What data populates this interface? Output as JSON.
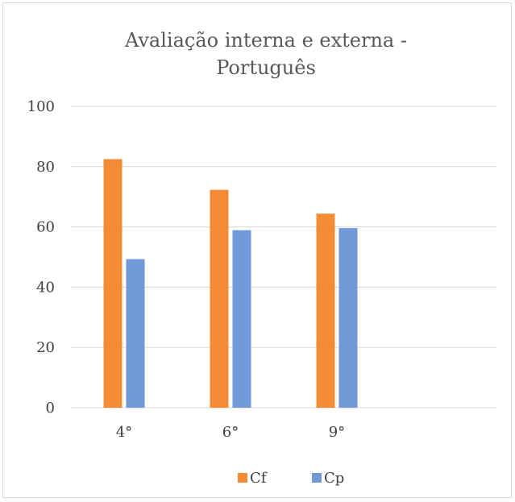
{
  "chart_data": {
    "type": "bar",
    "title_lines": [
      "Avaliação interna e externa -",
      "Português"
    ],
    "categories": [
      "4°",
      "6°",
      "9°",
      ""
    ],
    "series": [
      {
        "name": "Cf",
        "color": "#F58B34",
        "values": [
          82.5,
          72.3,
          64.4,
          null
        ]
      },
      {
        "name": "Cp",
        "color": "#7199D7",
        "values": [
          49.3,
          58.9,
          59.6,
          null
        ]
      }
    ],
    "ylim": [
      0,
      100
    ],
    "yticks": [
      0,
      20,
      40,
      60,
      80,
      100
    ],
    "grid": true,
    "legend": "bottom"
  }
}
